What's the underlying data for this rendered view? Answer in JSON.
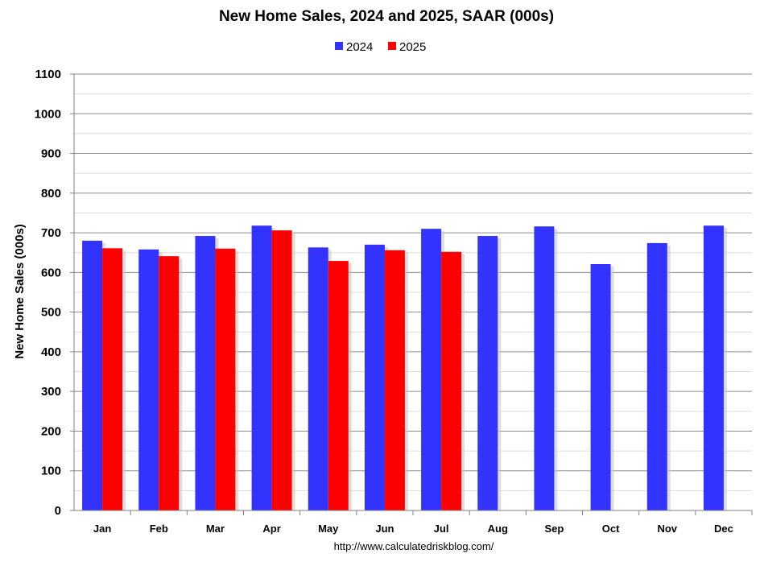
{
  "chart_data": {
    "type": "bar",
    "title": "New Home Sales,  2024 and 2025, SAAR (000s)",
    "ylabel": "New Home Sales (000s)",
    "xlabel": "",
    "ylim": [
      0,
      1100
    ],
    "yticks": [
      0,
      100,
      200,
      300,
      400,
      500,
      600,
      700,
      800,
      900,
      1000,
      1100
    ],
    "grid": true,
    "legend_position": "top-center",
    "categories": [
      "Jan",
      "Feb",
      "Mar",
      "Apr",
      "May",
      "Jun",
      "Jul",
      "Aug",
      "Sep",
      "Oct",
      "Nov",
      "Dec"
    ],
    "series": [
      {
        "name": "2024",
        "color": "#3333ff",
        "values": [
          680,
          658,
          692,
          718,
          663,
          670,
          710,
          692,
          716,
          621,
          674,
          718
        ]
      },
      {
        "name": "2025",
        "color": "#ff0000",
        "values": [
          661,
          641,
          660,
          706,
          629,
          656,
          652,
          null,
          null,
          null,
          null,
          null
        ]
      }
    ],
    "source": "http://www.calculatedriskblog.com/"
  }
}
